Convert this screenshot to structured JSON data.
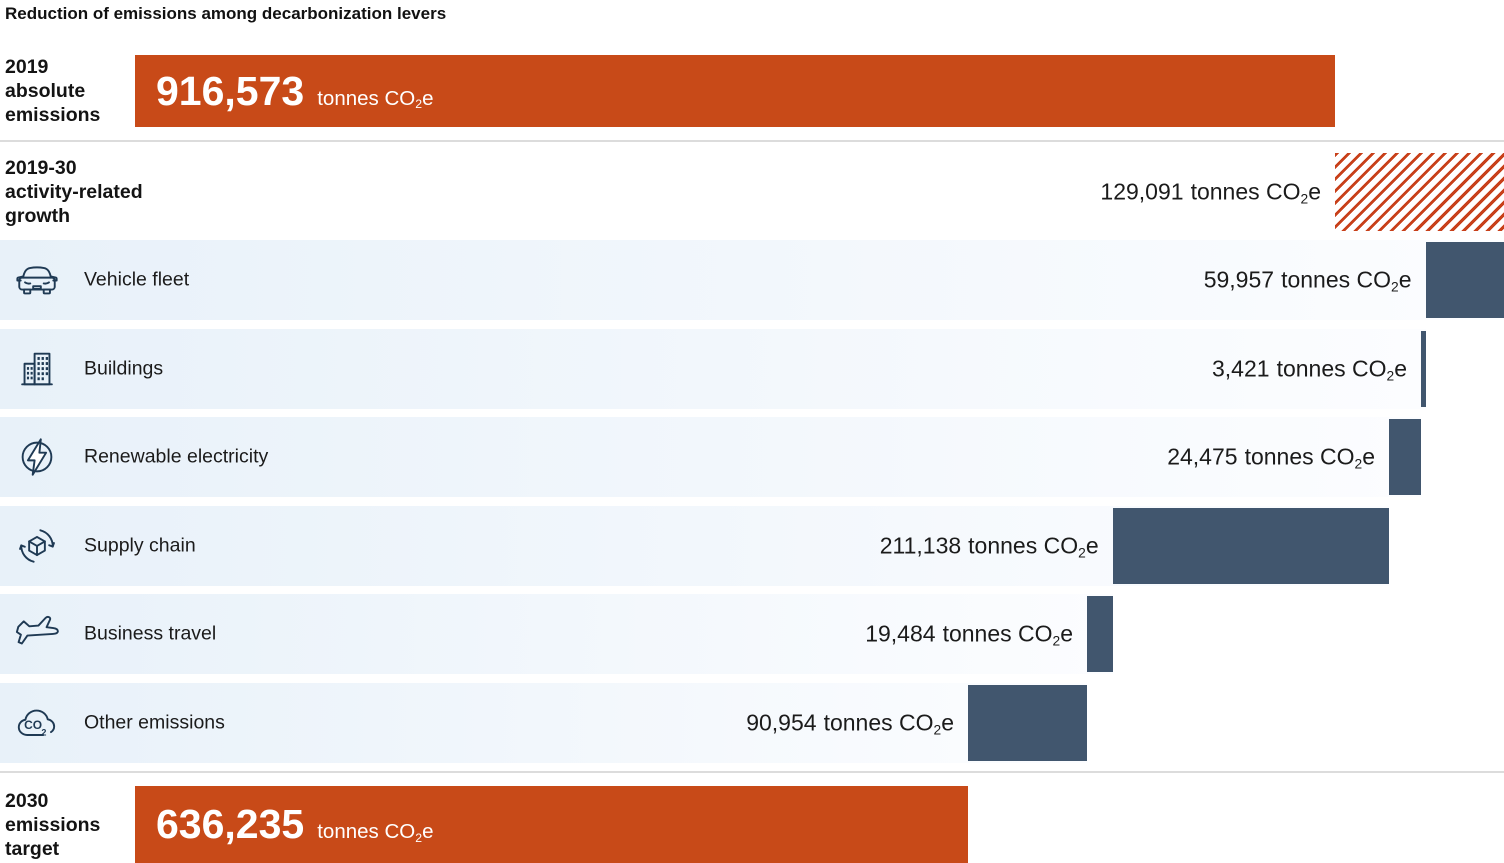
{
  "title": "Reduction of emissions among decarbonization levers",
  "unit": {
    "prefix": "tonnes CO",
    "sub": "2",
    "suffix": "e"
  },
  "labels": {
    "start": [
      "2019",
      "absolute",
      "emissions"
    ],
    "increase": [
      "2019-30",
      "activity-related",
      "growth"
    ],
    "end": [
      "2030",
      "emissions",
      "target"
    ]
  },
  "colors": {
    "bar_orange": "#c84a18",
    "bar_slate": "#41566e",
    "hatch_red": "#c8401a",
    "icon_stroke": "#1f3a54",
    "row_bg_left": "#e8f1f9",
    "row_bg_right": "#fcfdff",
    "divider": "#dcdcdc",
    "text": "#1a1a1a"
  },
  "chart_data": {
    "type": "bar",
    "subtype": "waterfall",
    "title": "Reduction of emissions among decarbonization levers",
    "unit": "tonnes CO2e",
    "orientation": "horizontal",
    "start": {
      "label": "2019 absolute emissions",
      "value": 916573,
      "value_formatted": "916,573",
      "style": "solid-orange"
    },
    "increase": {
      "label": "2019-30 activity-related growth",
      "value": 129091,
      "value_formatted": "129,091",
      "style": "hatched-red"
    },
    "reductions": [
      {
        "label": "Vehicle fleet",
        "icon": "car-icon",
        "value": 59957,
        "value_formatted": "59,957"
      },
      {
        "label": "Buildings",
        "icon": "buildings-icon",
        "value": 3421,
        "value_formatted": "3,421"
      },
      {
        "label": "Renewable electricity",
        "icon": "lightning-icon",
        "value": 24475,
        "value_formatted": "24,475"
      },
      {
        "label": "Supply chain",
        "icon": "supply-chain-icon",
        "value": 211138,
        "value_formatted": "211,138"
      },
      {
        "label": "Business travel",
        "icon": "airplane-icon",
        "value": 19484,
        "value_formatted": "19,484"
      },
      {
        "label": "Other emissions",
        "icon": "co2-cloud-icon",
        "value": 90954,
        "value_formatted": "90,954"
      }
    ],
    "end": {
      "label": "2030 emissions target",
      "value": 636235,
      "value_formatted": "636,235",
      "style": "solid-orange"
    }
  }
}
